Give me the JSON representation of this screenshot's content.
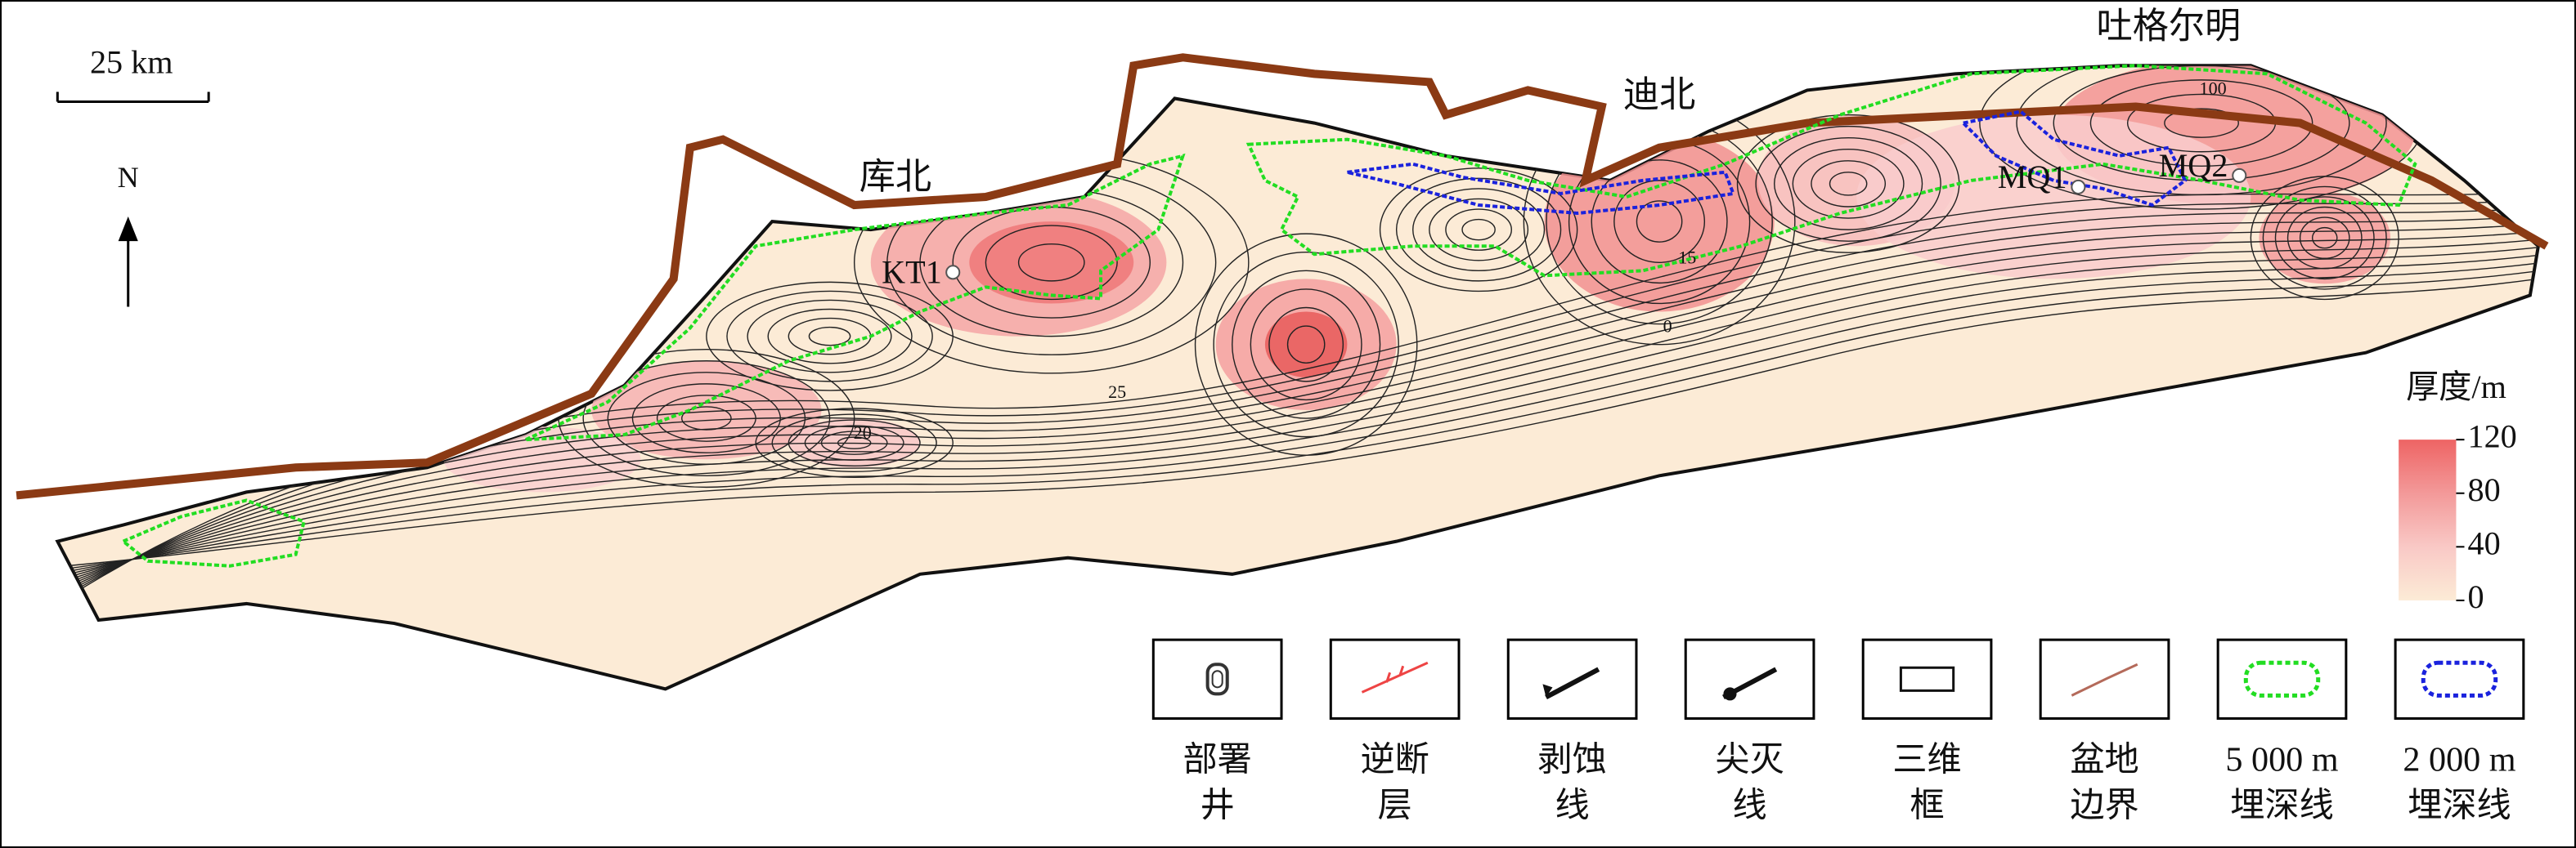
{
  "scale_bar": "25 km",
  "north": "N",
  "places": [
    "库北",
    "迪北",
    "吐格尔明"
  ],
  "wells": [
    "KT1",
    "MQ1",
    "MQ2"
  ],
  "contour_labels": [
    "100",
    "25",
    "15",
    "0",
    "20"
  ],
  "colorbar": {
    "title": "厚度/m",
    "ticks": [
      120,
      80,
      40,
      0
    ]
  },
  "legend": [
    {
      "lines": [
        "部署",
        "井"
      ]
    },
    {
      "lines": [
        "逆断",
        "层"
      ]
    },
    {
      "lines": [
        "剥蚀",
        "线"
      ]
    },
    {
      "lines": [
        "尖灭",
        "线"
      ]
    },
    {
      "lines": [
        "三维",
        "框"
      ]
    },
    {
      "lines": [
        "盆地",
        "边界"
      ]
    },
    {
      "lines": [
        "5 000 m",
        "埋深线"
      ]
    },
    {
      "lines": [
        "2 000 m",
        "埋深线"
      ]
    }
  ]
}
